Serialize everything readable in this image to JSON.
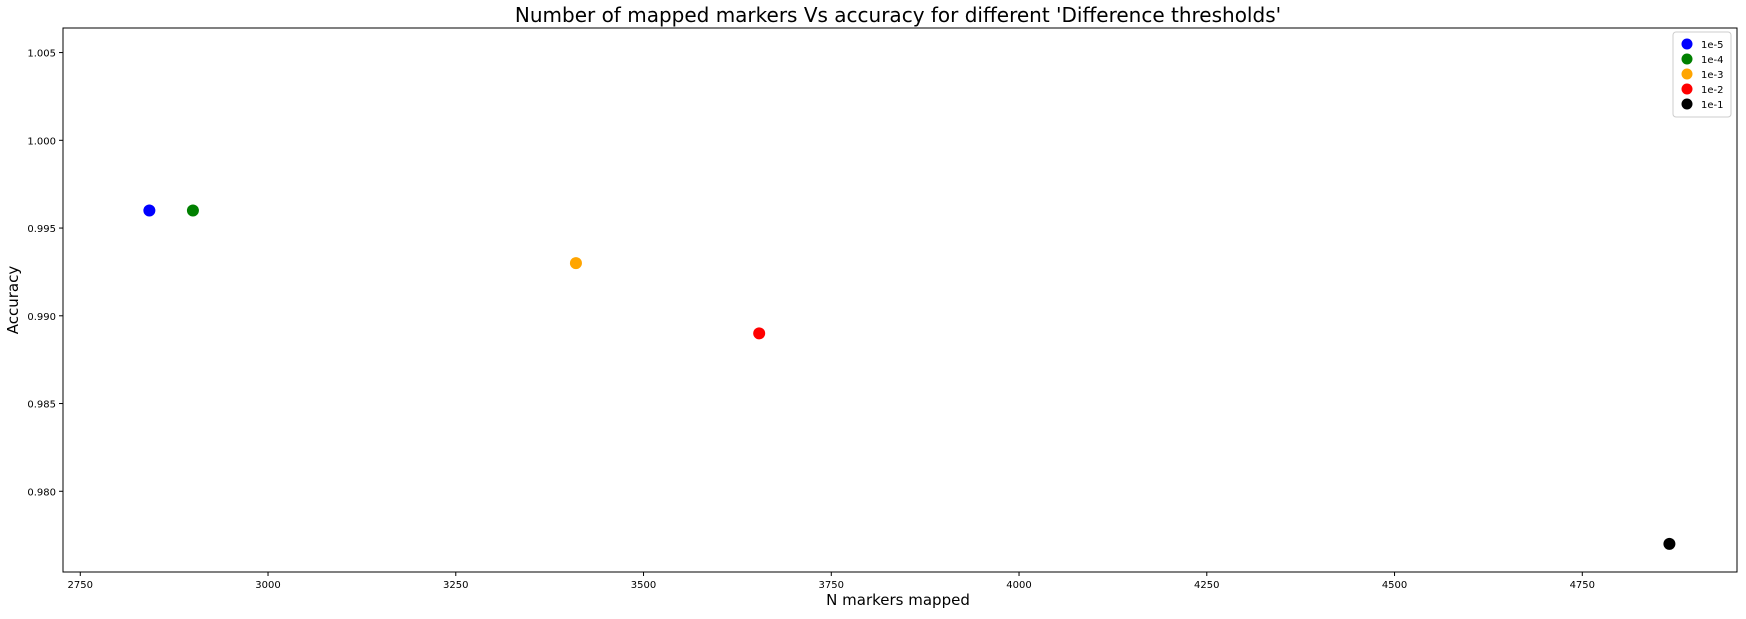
{
  "chart_data": {
    "type": "scatter",
    "title": "Number of mapped markers Vs accuracy for different 'Difference thresholds'",
    "xlabel": "N markers mapped",
    "ylabel": "Accuracy",
    "xlim": [
      2727,
      4956
    ],
    "ylim": [
      0.9754,
      1.0064
    ],
    "xticks": [
      2750,
      3000,
      3250,
      3500,
      3750,
      4000,
      4250,
      4500,
      4750
    ],
    "xtick_labels": [
      "2750",
      "3000",
      "3250",
      "3500",
      "3750",
      "4000",
      "4250",
      "4500",
      "4750"
    ],
    "yticks": [
      0.98,
      0.985,
      0.99,
      0.995,
      1.0,
      1.005
    ],
    "ytick_labels": [
      "0.980",
      "0.985",
      "0.990",
      "0.995",
      "1.000",
      "1.005"
    ],
    "grid": false,
    "legend_position": "top-right",
    "series": [
      {
        "name": "1e-5",
        "color": "#0000ff",
        "x": [
          2842
        ],
        "y": [
          0.996
        ]
      },
      {
        "name": "1e-4",
        "color": "#008000",
        "x": [
          2900
        ],
        "y": [
          0.996
        ]
      },
      {
        "name": "1e-3",
        "color": "#ffa500",
        "x": [
          3410
        ],
        "y": [
          0.993
        ]
      },
      {
        "name": "1e-2",
        "color": "#ff0000",
        "x": [
          3654
        ],
        "y": [
          0.989
        ]
      },
      {
        "name": "1e-1",
        "color": "#000000",
        "x": [
          4866
        ],
        "y": [
          0.977
        ]
      }
    ]
  }
}
